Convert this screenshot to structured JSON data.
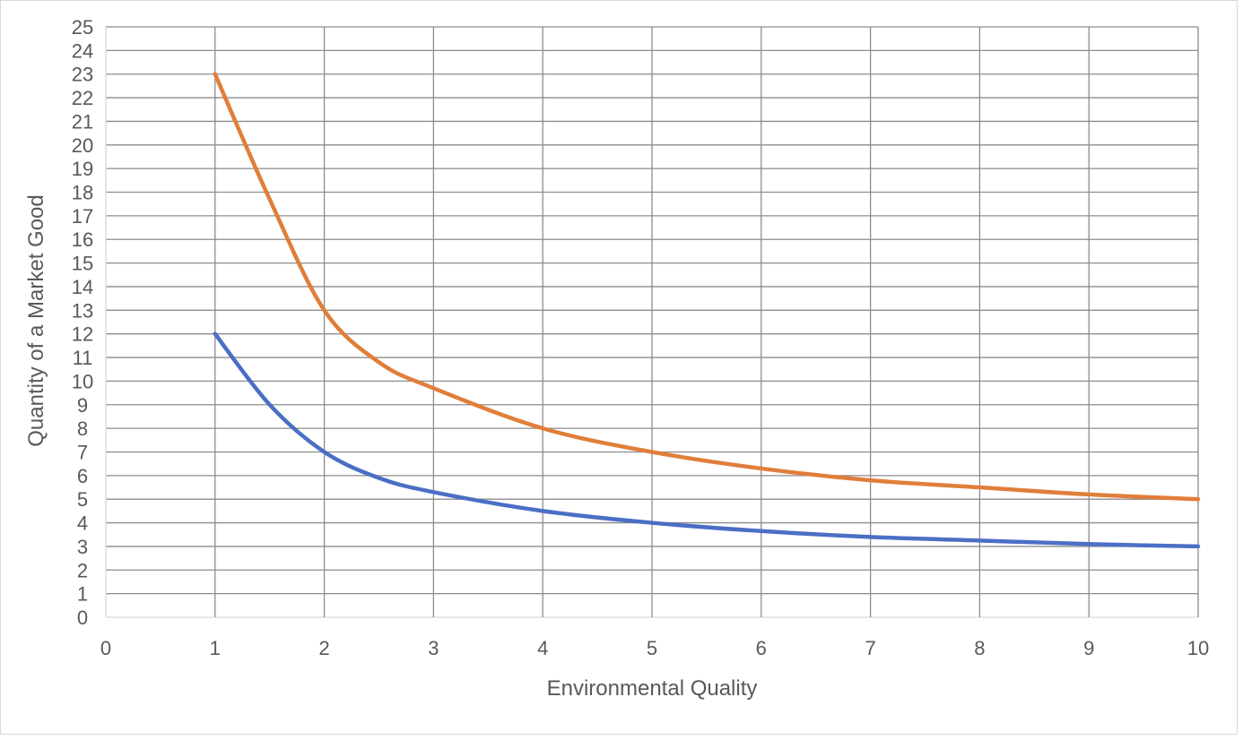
{
  "chart_data": {
    "type": "line",
    "title": "",
    "xlabel": "Environmental Quality",
    "ylabel": "Quantity of a Market Good",
    "xlim": [
      0,
      10
    ],
    "ylim": [
      0,
      25
    ],
    "x_ticks": [
      0,
      1,
      2,
      3,
      4,
      5,
      6,
      7,
      8,
      9,
      10
    ],
    "y_ticks": [
      0,
      1,
      2,
      3,
      4,
      5,
      6,
      7,
      8,
      9,
      10,
      11,
      12,
      13,
      14,
      15,
      16,
      17,
      18,
      19,
      20,
      21,
      22,
      23,
      24,
      25
    ],
    "grid": true,
    "legend": "none",
    "series": [
      {
        "color": "#E07E3A",
        "x": [
          1,
          1.5,
          2,
          2.5,
          3,
          4,
          5,
          6,
          7,
          8,
          9,
          10
        ],
        "values": [
          23,
          17.7,
          13,
          10.8,
          9.7,
          8,
          7,
          6.3,
          5.8,
          5.5,
          5.2,
          5
        ]
      },
      {
        "color": "#4A6FC4",
        "x": [
          1,
          1.5,
          2,
          2.5,
          3,
          4,
          5,
          6,
          7,
          8,
          9,
          10
        ],
        "values": [
          12,
          9,
          7,
          5.9,
          5.3,
          4.5,
          4,
          3.65,
          3.4,
          3.25,
          3.1,
          3
        ]
      }
    ]
  }
}
